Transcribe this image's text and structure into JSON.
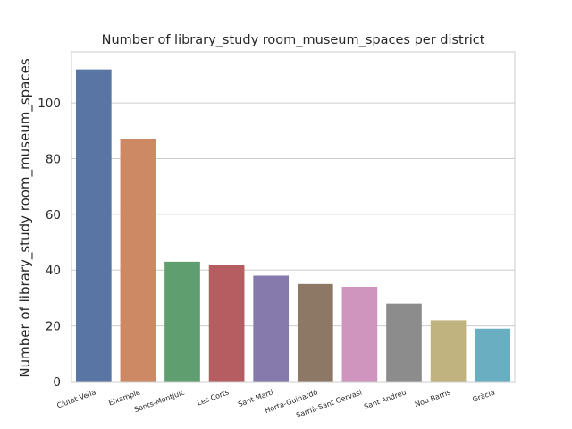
{
  "chart_data": {
    "type": "bar",
    "title": "Number of library_study room_museum_spaces per district",
    "xlabel": "",
    "ylabel": "Number of library_study room_museum_spaces",
    "categories": [
      "Ciutat Vella",
      "Eixample",
      "Sants-Montjuïc",
      "Les Corts",
      "Sant Martí",
      "Horta-Guinardó",
      "Sarrià-Sant Gervasi",
      "Sant Andreu",
      "Nou Barris",
      "Gràcia"
    ],
    "values": [
      112,
      87,
      43,
      42,
      38,
      35,
      34,
      28,
      22,
      19
    ],
    "colors": [
      "#5875a4",
      "#cc8963",
      "#5f9e6e",
      "#b55d60",
      "#857aab",
      "#8d7866",
      "#d095bf",
      "#8c8c8c",
      "#c1b37f",
      "#6aaec2"
    ],
    "ylim": [
      0,
      118.3
    ],
    "yticks": [
      0,
      20,
      40,
      60,
      80,
      100
    ],
    "grid": true,
    "legend": "none"
  }
}
